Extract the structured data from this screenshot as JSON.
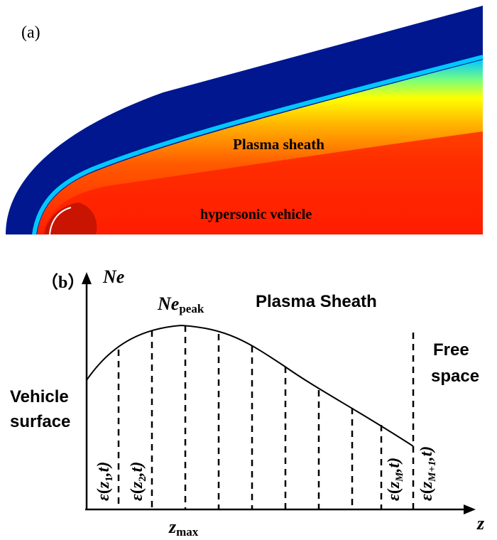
{
  "panel_a": {
    "label": "(a)",
    "sheath_label": "Plasma sheath",
    "vehicle_label": "hypersonic vehicle",
    "colors": {
      "freestream": "#00178f",
      "boundary": "#00c8ff",
      "hot": "#ff1e00",
      "core": "#c81400"
    }
  },
  "panel_b": {
    "label": "（b）",
    "y_axis_label": "Ne",
    "x_axis_label": "z",
    "peak_label_base": "Ne",
    "peak_label_sub": "peak",
    "zmax_base": "z",
    "zmax_sub": "max",
    "title": "Plasma Sheath",
    "vehicle_surface": [
      "Vehicle",
      "surface"
    ],
    "free_space": [
      "Free",
      "space"
    ],
    "eps": [
      {
        "sym": "ε",
        "open": "(",
        "var": "z",
        "sub": "1",
        "rest": ",t)"
      },
      {
        "sym": "ε",
        "open": "(",
        "var": "z",
        "sub": "2",
        "rest": ",t)"
      },
      {
        "sym": "ε",
        "open": "(",
        "var": "z",
        "sub": "M",
        "rest": ",t)"
      },
      {
        "sym": "ε",
        "open": "(",
        "var": "z",
        "sub": "M+1",
        "rest": ",t)"
      }
    ]
  }
}
